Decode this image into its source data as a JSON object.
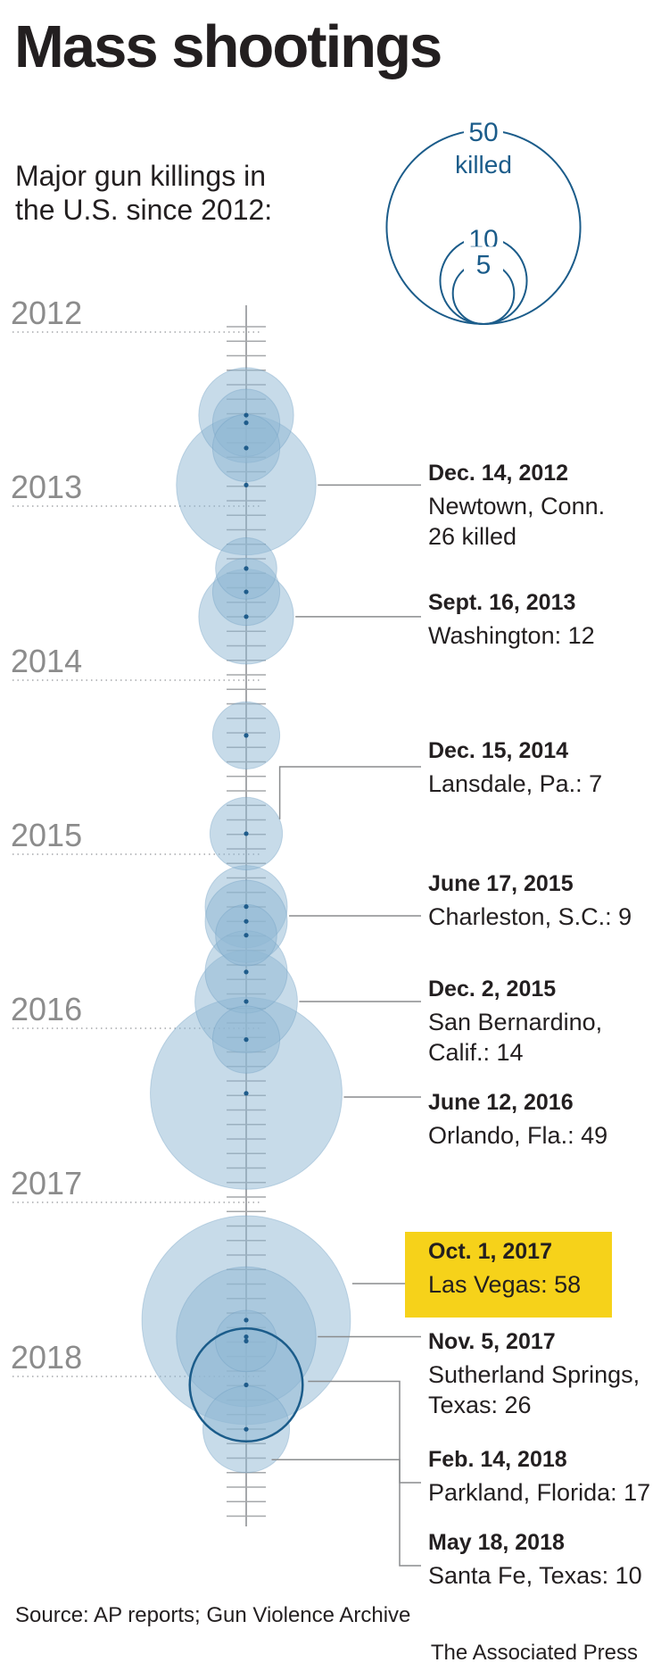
{
  "header": {
    "title": "Mass shootings",
    "subtitle": "Major gun killings in the U.S. since 2012:"
  },
  "legend": {
    "sizes": [
      {
        "value": 50,
        "label": "50",
        "sublabel": "killed"
      },
      {
        "value": 10,
        "label": "10",
        "sublabel": ""
      },
      {
        "value": 5,
        "label": "5",
        "sublabel": ""
      }
    ]
  },
  "footer": {
    "source": "Source: AP reports; Gun Violence Archive",
    "credit": "The Associated Press"
  },
  "colors": {
    "bubble_fill": "#8fb8d3",
    "bubble_stroke": "#6a9cc0",
    "dot": "#1f5c8b",
    "outline_accent": "#1b5c8a",
    "legend_stroke": "#1b5c8a",
    "highlight": "#f6d21a",
    "axis": "#a6a8ab",
    "year_label": "#8c8c8c",
    "text": "#231f20"
  },
  "chart_data": {
    "type": "bubble-timeline",
    "title": "Mass shootings",
    "subtitle": "Major gun killings in the U.S. since 2012:",
    "size_unit": "killed",
    "years": [
      "2012",
      "2013",
      "2014",
      "2015",
      "2016",
      "2017",
      "2018"
    ],
    "events": [
      {
        "date": "2012-07-20",
        "killed": 12
      },
      {
        "date": "2012-08-05",
        "killed": 6
      },
      {
        "date": "2012-09-27",
        "killed": 6
      },
      {
        "date": "2012-12-14",
        "killed": 26,
        "label_date": "Dec. 14, 2012",
        "label_place": "Newtown, Conn.",
        "label_count": "26 killed"
      },
      {
        "date": "2013-06-07",
        "killed": 5
      },
      {
        "date": "2013-07-26",
        "killed": 6
      },
      {
        "date": "2013-09-16",
        "killed": 12,
        "label_date": "Sept. 16, 2013",
        "label_place": "Washington: 12"
      },
      {
        "date": "2014-05-23",
        "killed": 6
      },
      {
        "date": "2014-12-15",
        "killed": 7,
        "label_date": "Dec. 15, 2014",
        "label_place": "Lansdale, Pa.: 7"
      },
      {
        "date": "2015-05-17",
        "killed": 9
      },
      {
        "date": "2015-06-17",
        "killed": 9,
        "label_date": "June 17, 2015",
        "label_place": "Charleston, S.C.: 9"
      },
      {
        "date": "2015-07-16",
        "killed": 5
      },
      {
        "date": "2015-10-01",
        "killed": 9
      },
      {
        "date": "2015-12-02",
        "killed": 14,
        "label_date": "Dec. 2, 2015",
        "label_place": "San Bernardino,",
        "label_place2": "Calif.: 14"
      },
      {
        "date": "2016-02-20",
        "killed": 6
      },
      {
        "date": "2016-06-12",
        "killed": 49,
        "label_date": "June 12, 2016",
        "label_place": "Orlando, Fla.: 49"
      },
      {
        "date": "2017-10-01",
        "killed": 58,
        "label_date": "Oct. 1, 2017",
        "label_place": "Las Vegas: 58",
        "highlight": true
      },
      {
        "date": "2017-11-05",
        "killed": 26,
        "label_date": "Nov. 5, 2017",
        "label_place": "Sutherland Springs,",
        "label_place2": "Texas: 26"
      },
      {
        "date": "2017-11-14",
        "killed": 5
      },
      {
        "date": "2018-02-14",
        "killed": 17,
        "label_date": "Feb. 14, 2018",
        "label_place": "Parkland, Florida: 17",
        "outlined": true
      },
      {
        "date": "2018-05-18",
        "killed": 10,
        "label_date": "May 18, 2018",
        "label_place": "Santa Fe, Texas: 10"
      }
    ]
  }
}
